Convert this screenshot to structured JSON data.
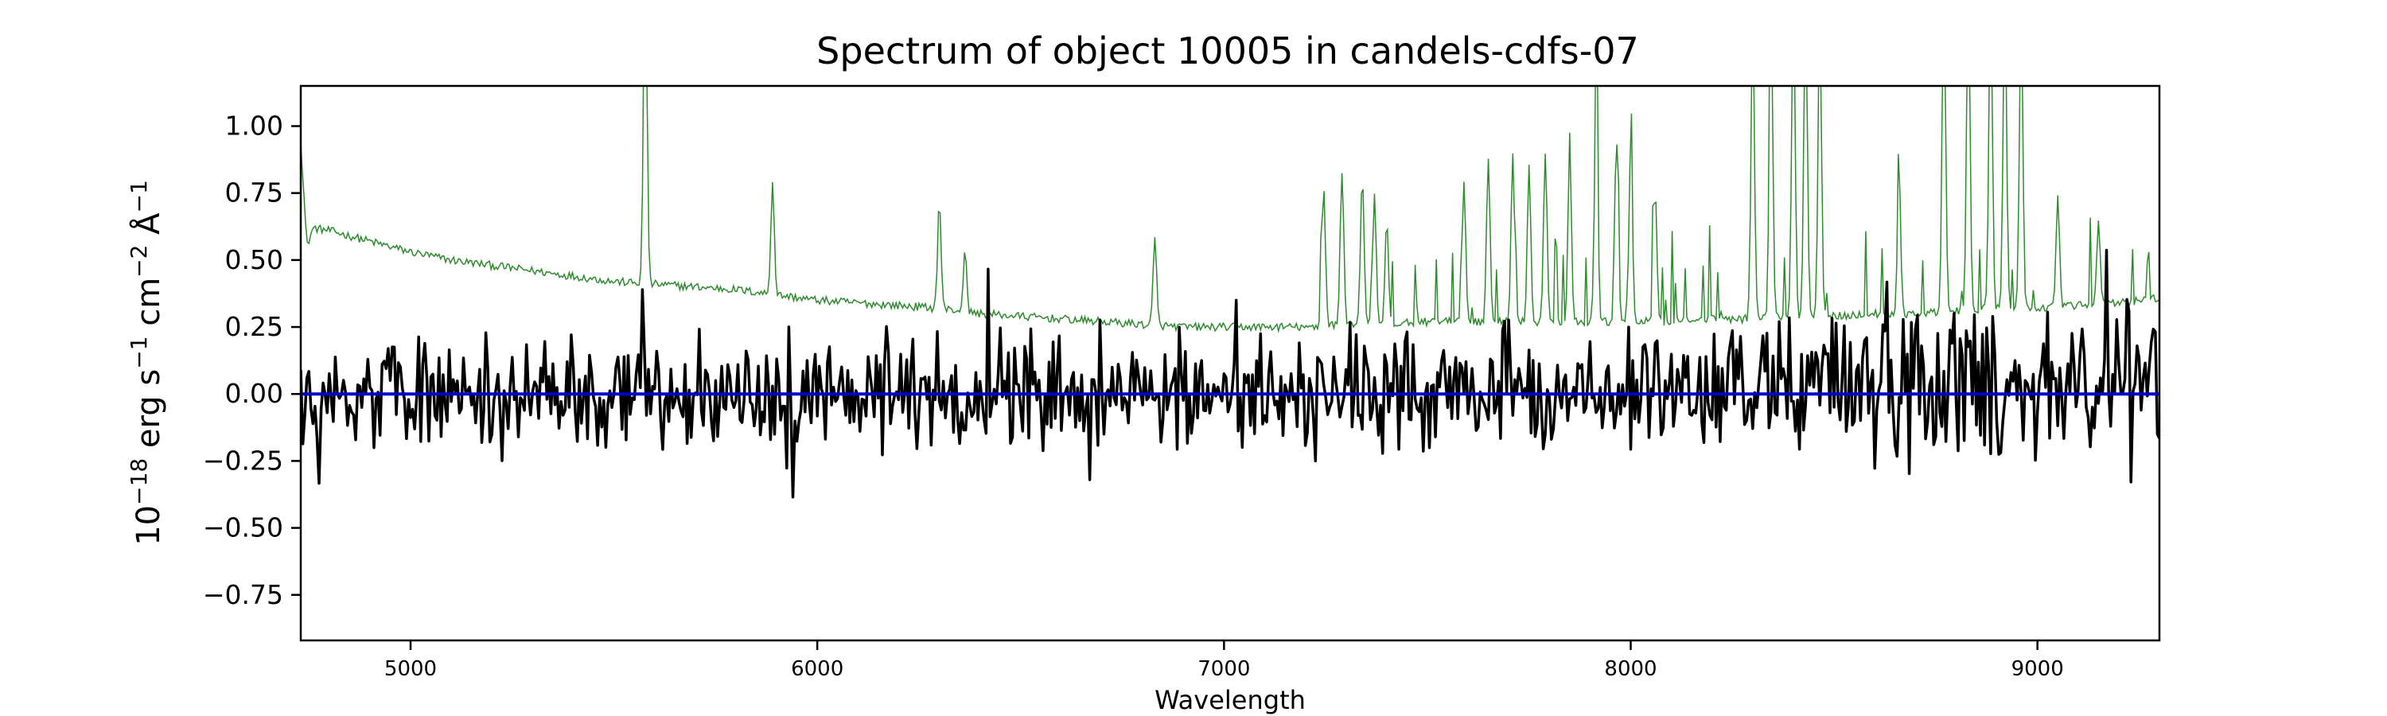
{
  "chart_data": {
    "type": "line",
    "title": "Spectrum of object 10005 in candels-cdfs-07",
    "xlabel": "Wavelength",
    "ylabel": {
      "base": "10",
      "exp": "−18",
      "unit1": " erg s",
      "unit1_exp": "−1",
      "unit2": " cm",
      "unit2_exp": "−2",
      "unit3": " Å",
      "unit3_exp": "−1"
    },
    "xlim": [
      4730,
      9300
    ],
    "ylim": [
      -0.92,
      1.15
    ],
    "x_ticks": [
      5000,
      6000,
      7000,
      8000,
      9000
    ],
    "x_tick_labels": [
      "5000",
      "6000",
      "7000",
      "8000",
      "9000"
    ],
    "y_ticks": [
      -0.75,
      -0.5,
      -0.25,
      0.0,
      0.25,
      0.5,
      0.75,
      1.0
    ],
    "y_tick_labels": [
      "−0.75",
      "−0.50",
      "−0.25",
      "0.00",
      "0.25",
      "0.50",
      "0.75",
      "1.00"
    ],
    "grid": false,
    "series": [
      {
        "color": "#2e8b2e",
        "linewidth": 1.5,
        "continuum": [
          [
            4730,
            0.95
          ],
          [
            4745,
            0.55
          ],
          [
            4760,
            0.62
          ],
          [
            4800,
            0.61
          ],
          [
            4900,
            0.57
          ],
          [
            5000,
            0.53
          ],
          [
            5100,
            0.5
          ],
          [
            5200,
            0.48
          ],
          [
            5300,
            0.46
          ],
          [
            5400,
            0.44
          ],
          [
            5500,
            0.42
          ],
          [
            5600,
            0.41
          ],
          [
            5700,
            0.4
          ],
          [
            5800,
            0.39
          ],
          [
            5900,
            0.37
          ],
          [
            6000,
            0.35
          ],
          [
            6100,
            0.34
          ],
          [
            6200,
            0.33
          ],
          [
            6300,
            0.32
          ],
          [
            6400,
            0.3
          ],
          [
            6500,
            0.29
          ],
          [
            6600,
            0.28
          ],
          [
            6700,
            0.27
          ],
          [
            6800,
            0.26
          ],
          [
            6900,
            0.25
          ],
          [
            7000,
            0.25
          ],
          [
            7100,
            0.25
          ],
          [
            7200,
            0.25
          ],
          [
            7300,
            0.26
          ],
          [
            7400,
            0.26
          ],
          [
            7500,
            0.27
          ],
          [
            7600,
            0.27
          ],
          [
            7700,
            0.27
          ],
          [
            7800,
            0.27
          ],
          [
            7900,
            0.27
          ],
          [
            8000,
            0.27
          ],
          [
            8100,
            0.27
          ],
          [
            8200,
            0.28
          ],
          [
            8300,
            0.28
          ],
          [
            8400,
            0.29
          ],
          [
            8500,
            0.29
          ],
          [
            8600,
            0.3
          ],
          [
            8700,
            0.3
          ],
          [
            8800,
            0.31
          ],
          [
            8900,
            0.32
          ],
          [
            9000,
            0.32
          ],
          [
            9100,
            0.33
          ],
          [
            9200,
            0.34
          ],
          [
            9300,
            0.36
          ]
        ],
        "peaks": [
          [
            5577,
            1.6
          ],
          [
            5890,
            0.72
          ],
          [
            6300,
            0.7
          ],
          [
            6363,
            0.52
          ],
          [
            6830,
            0.62
          ],
          [
            7245,
            0.82
          ],
          [
            7290,
            0.88
          ],
          [
            7340,
            0.86
          ],
          [
            7370,
            0.78
          ],
          [
            7400,
            0.7
          ],
          [
            7590,
            0.83
          ],
          [
            7650,
            0.92
          ],
          [
            7710,
            0.92
          ],
          [
            7750,
            0.88
          ],
          [
            7790,
            0.93
          ],
          [
            7850,
            0.95
          ],
          [
            7915,
            1.12
          ],
          [
            7965,
            0.98
          ],
          [
            8000,
            0.95
          ],
          [
            8060,
            0.8
          ],
          [
            8300,
            1.4
          ],
          [
            8345,
            1.5
          ],
          [
            8400,
            1.5
          ],
          [
            8430,
            1.5
          ],
          [
            8465,
            1.4
          ],
          [
            8660,
            0.76
          ],
          [
            8770,
            1.5
          ],
          [
            8830,
            1.5
          ],
          [
            8885,
            1.5
          ],
          [
            8920,
            1.5
          ],
          [
            8960,
            1.4
          ],
          [
            9050,
            0.72
          ],
          [
            9150,
            0.6
          ]
        ]
      },
      {
        "color": "#000000",
        "linewidth": 3.5,
        "noise_amp": 0.2,
        "noise_amp_red": 0.28
      },
      {
        "color": "#0000cc",
        "linewidth": 4,
        "value": 0.0
      }
    ]
  }
}
